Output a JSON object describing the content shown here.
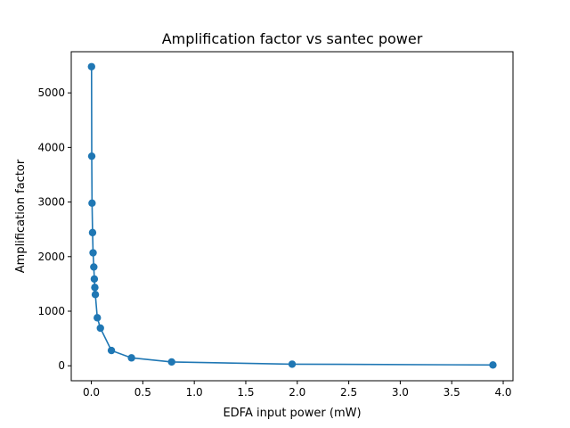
{
  "chart_data": {
    "type": "line",
    "title": "Amplification factor vs santec power",
    "xlabel": "EDFA input power (mW)",
    "ylabel": "Amplification factor",
    "xlim": [
      -0.195,
      4.095
    ],
    "ylim": [
      -274,
      5754
    ],
    "xticks": [
      0.0,
      0.5,
      1.0,
      1.5,
      2.0,
      2.5,
      3.0,
      3.5,
      4.0
    ],
    "xtick_labels": [
      "0.0",
      "0.5",
      "1.0",
      "1.5",
      "2.0",
      "2.5",
      "3.0",
      "3.5",
      "4.0"
    ],
    "yticks": [
      0,
      1000,
      2000,
      3000,
      4000,
      5000
    ],
    "ytick_labels": [
      "0",
      "1000",
      "2000",
      "3000",
      "4000",
      "5000"
    ],
    "grid": false,
    "legend": null,
    "series": [
      {
        "color": "#1f77b4",
        "marker": "circle",
        "points": [
          {
            "x": 0.002,
            "y": 5480
          },
          {
            "x": 0.004,
            "y": 3840
          },
          {
            "x": 0.007,
            "y": 2980
          },
          {
            "x": 0.012,
            "y": 2440
          },
          {
            "x": 0.017,
            "y": 2070
          },
          {
            "x": 0.024,
            "y": 1810
          },
          {
            "x": 0.029,
            "y": 1590
          },
          {
            "x": 0.034,
            "y": 1435
          },
          {
            "x": 0.039,
            "y": 1305
          },
          {
            "x": 0.058,
            "y": 880
          },
          {
            "x": 0.088,
            "y": 690
          },
          {
            "x": 0.195,
            "y": 280
          },
          {
            "x": 0.39,
            "y": 145
          },
          {
            "x": 0.78,
            "y": 70
          },
          {
            "x": 1.95,
            "y": 30
          },
          {
            "x": 3.9,
            "y": 15
          }
        ]
      }
    ]
  }
}
